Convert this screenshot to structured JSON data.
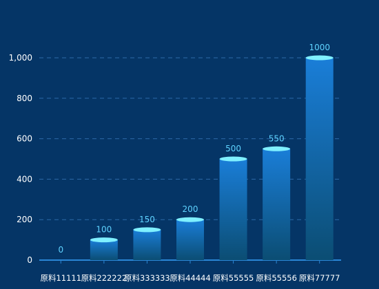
{
  "chart_data": {
    "type": "bar",
    "title": "",
    "xlabel": "",
    "ylabel": "",
    "categories": [
      "原料11111",
      "原料222222",
      "原料333333",
      "原料44444",
      "原料55555",
      "原料55556",
      "原料77777"
    ],
    "values": [
      0,
      100,
      150,
      200,
      500,
      550,
      1000
    ],
    "data_labels": [
      "0",
      "100",
      "150",
      "200",
      "500",
      "550",
      "1000"
    ],
    "ylim": [
      0,
      1000
    ],
    "y_ticks": [
      0,
      200,
      400,
      600,
      800,
      1000
    ],
    "y_tick_labels": [
      "0",
      "200",
      "400",
      "600",
      "800",
      "1,000"
    ],
    "grid": true,
    "legend": "none",
    "style": {
      "background": "#053566",
      "grid_color": "#2d6aa8",
      "axis_color": "#2a86d6",
      "tick_label_color": "#ffffff",
      "value_label_color": "#5fd3ff",
      "bar_top_color": "#1a7ed8",
      "bar_bottom_color": "#0b4d73",
      "cap_color": "#7ff0ff"
    }
  }
}
